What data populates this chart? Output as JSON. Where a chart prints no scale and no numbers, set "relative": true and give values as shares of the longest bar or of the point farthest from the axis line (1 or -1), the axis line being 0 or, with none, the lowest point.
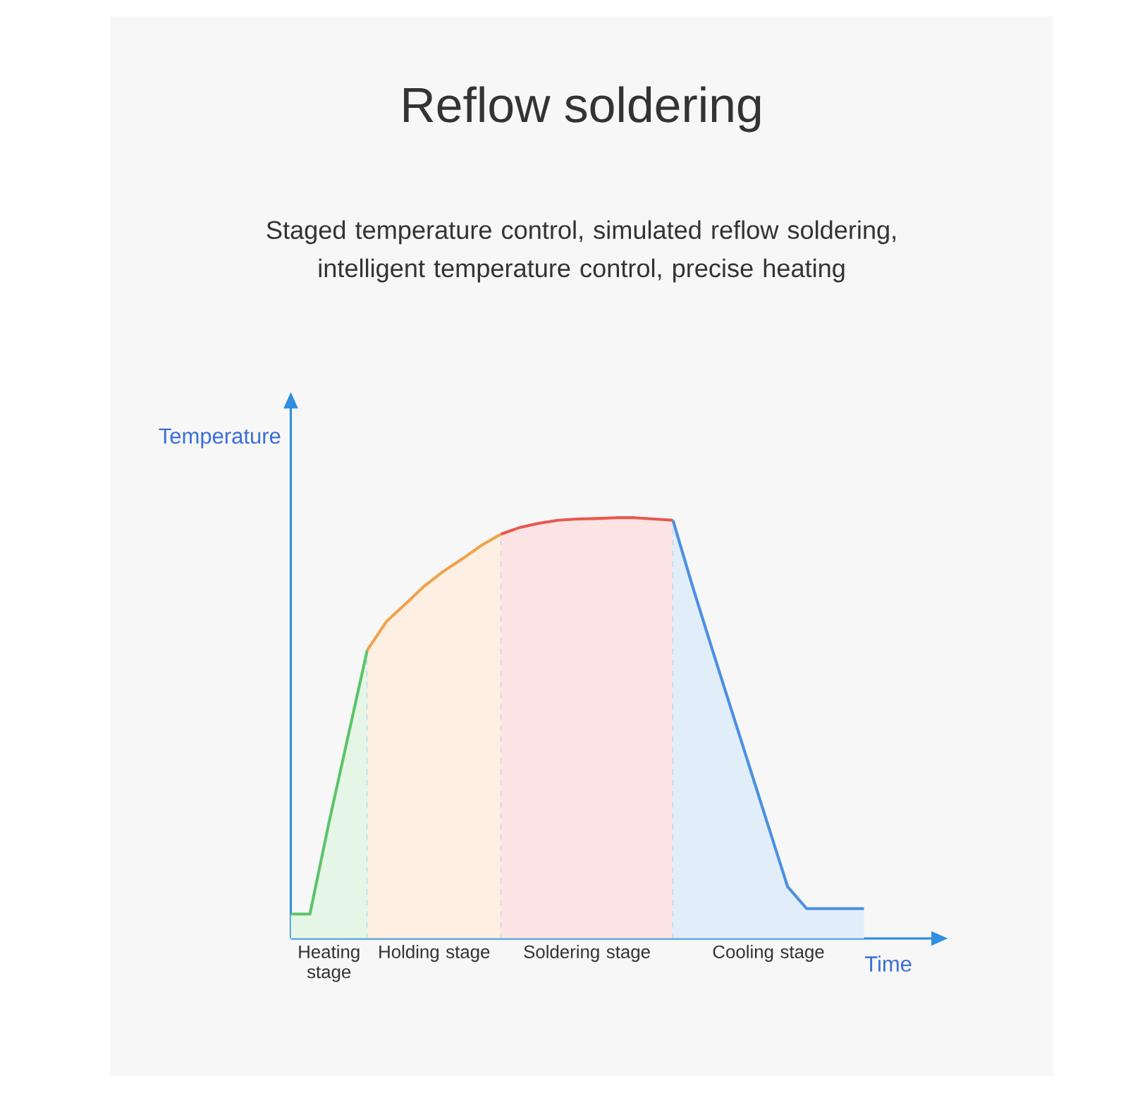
{
  "chart_data": {
    "type": "area",
    "title": "Reflow soldering",
    "subtitle": "Staged temperature control, simulated reflow soldering, intelligent temperature control, precise heating",
    "xlabel": "Time",
    "ylabel": "Temperature",
    "relative": true,
    "marker": "none",
    "line_style": "solid",
    "categories": [
      null,
      null,
      null,
      null,
      null,
      null,
      null,
      null,
      null,
      null,
      null,
      null,
      null,
      null,
      null,
      null,
      null,
      null,
      null,
      null,
      null,
      null,
      null,
      null,
      null,
      null,
      null,
      null,
      null,
      null,
      null
    ],
    "series": [
      {
        "color": "#5cc46a",
        "values": [
          0.058,
          0.058,
          0.276,
          0.481,
          0.685,
          null,
          null,
          null,
          null,
          null,
          null,
          null,
          null,
          null,
          null,
          null,
          null,
          null,
          null,
          null,
          null,
          null,
          null,
          null,
          null,
          null,
          null,
          null,
          null,
          null,
          null
        ]
      },
      {
        "color": "#f0a24a",
        "values": [
          null,
          null,
          null,
          null,
          0.685,
          0.753,
          0.795,
          0.838,
          0.873,
          0.903,
          0.935,
          0.961,
          null,
          null,
          null,
          null,
          null,
          null,
          null,
          null,
          null,
          null,
          null,
          null,
          null,
          null,
          null,
          null,
          null,
          null,
          null
        ]
      },
      {
        "color": "#e8584f",
        "values": [
          null,
          null,
          null,
          null,
          null,
          null,
          null,
          null,
          null,
          null,
          null,
          0.961,
          0.977,
          0.987,
          0.994,
          0.997,
          0.998,
          1,
          1,
          0.997,
          0.994,
          null,
          null,
          null,
          null,
          null,
          null,
          null,
          null,
          null,
          null
        ]
      },
      {
        "color": "#4a90e2",
        "values": [
          null,
          null,
          null,
          null,
          null,
          null,
          null,
          null,
          null,
          null,
          null,
          null,
          null,
          null,
          null,
          null,
          null,
          null,
          null,
          null,
          0.994,
          0.841,
          0.695,
          0.552,
          0.409,
          0.266,
          0.123,
          0.071,
          0.071,
          0.071,
          0.071
        ]
      }
    ],
    "annotations": [
      "Heating stage",
      "Holding stage",
      "Soldering stage",
      "Cooling stage"
    ]
  }
}
